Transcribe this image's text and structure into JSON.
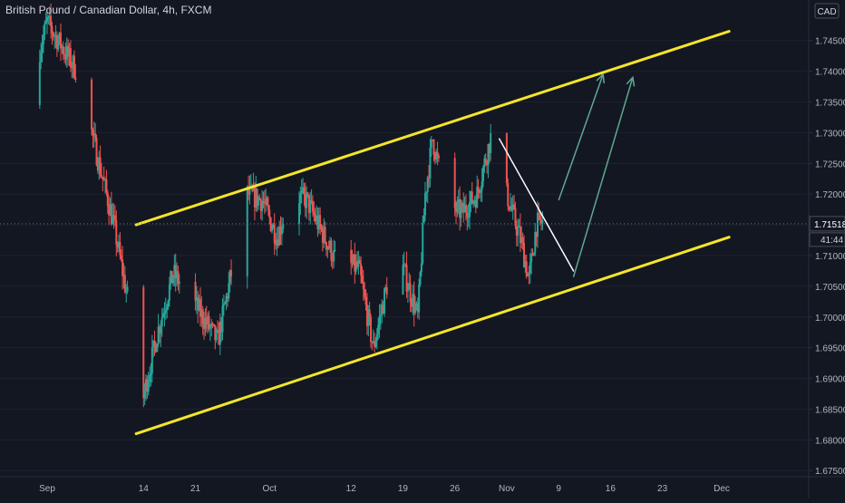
{
  "chart_data": {
    "type": "candlestick",
    "title": "British Pound / Canadian Dollar, 4h, FXCM",
    "currency": "CAD",
    "y_ticks": [
      1.675,
      1.68,
      1.685,
      1.69,
      1.695,
      1.7,
      1.705,
      1.71,
      1.715,
      1.72,
      1.725,
      1.73,
      1.735,
      1.74,
      1.745
    ],
    "y_tick_labels": [
      "1.67500",
      "1.68000",
      "1.68500",
      "1.69000",
      "1.69500",
      "1.70000",
      "1.70500",
      "1.71000",
      "1.71500",
      "1.72000",
      "1.72500",
      "1.73000",
      "1.73500",
      "1.74000",
      "1.74500"
    ],
    "ylim": [
      1.674,
      1.7516
    ],
    "x_tick_labels": [
      "Sep",
      "14",
      "21",
      "Oct",
      "12",
      "19",
      "26",
      "Nov",
      "9",
      "16",
      "23",
      "Dec"
    ],
    "current_price": "1.71518",
    "countdown": "41:44",
    "colors": {
      "background": "#131722",
      "up": "#26a69a",
      "down": "#ef5350",
      "channel": "#f5e52a",
      "trendline": "#ffffff",
      "arrow": "#5fa88f",
      "text": "#b2b5be"
    },
    "anchors": [
      {
        "date": "Aug 29",
        "price": 1.7345
      },
      {
        "date": "Sep 1",
        "price": 1.748
      },
      {
        "date": "Sep 3",
        "price": 1.744
      },
      {
        "date": "Sep 5",
        "price": 1.74
      },
      {
        "date": "Sep 8",
        "price": 1.725
      },
      {
        "date": "Sep 10",
        "price": 1.715
      },
      {
        "date": "Sep 12",
        "price": 1.702
      },
      {
        "date": "Sep 13",
        "price": 1.688
      },
      {
        "date": "Sep 14",
        "price": 1.687
      },
      {
        "date": "Sep 16",
        "price": 1.698
      },
      {
        "date": "Sep 18",
        "price": 1.707
      },
      {
        "date": "Sep 20",
        "price": 1.704
      },
      {
        "date": "Sep 22",
        "price": 1.7
      },
      {
        "date": "Sep 24",
        "price": 1.696
      },
      {
        "date": "Sep 26",
        "price": 1.708
      },
      {
        "date": "Sep 28",
        "price": 1.72
      },
      {
        "date": "Sep 30",
        "price": 1.719
      },
      {
        "date": "Oct 2",
        "price": 1.713
      },
      {
        "date": "Oct 4",
        "price": 1.72
      },
      {
        "date": "Oct 6",
        "price": 1.719
      },
      {
        "date": "Oct 8",
        "price": 1.714
      },
      {
        "date": "Oct 10",
        "price": 1.709
      },
      {
        "date": "Oct 13",
        "price": 1.708
      },
      {
        "date": "Oct 15",
        "price": 1.695
      },
      {
        "date": "Oct 17",
        "price": 1.706
      },
      {
        "date": "Oct 19",
        "price": 1.708
      },
      {
        "date": "Oct 21",
        "price": 1.7
      },
      {
        "date": "Oct 22",
        "price": 1.72
      },
      {
        "date": "Oct 23",
        "price": 1.729
      },
      {
        "date": "Oct 25",
        "price": 1.718
      },
      {
        "date": "Oct 27",
        "price": 1.717
      },
      {
        "date": "Oct 29",
        "price": 1.72
      },
      {
        "date": "Oct 31",
        "price": 1.73
      },
      {
        "date": "Nov 2",
        "price": 1.72
      },
      {
        "date": "Nov 4",
        "price": 1.712
      },
      {
        "date": "Nov 5",
        "price": 1.706
      },
      {
        "date": "Nov 6",
        "price": 1.715
      },
      {
        "date": "Nov 7",
        "price": 1.7155
      }
    ],
    "drawings": {
      "channel_upper": [
        {
          "date": "Sep 13",
          "price": 1.715
        },
        {
          "date": "Dec 2",
          "price": 1.7465
        }
      ],
      "channel_lower": [
        {
          "date": "Sep 13",
          "price": 1.681
        },
        {
          "date": "Dec 2",
          "price": 1.713
        }
      ],
      "trendline": [
        {
          "date": "Nov 1",
          "price": 1.729
        },
        {
          "date": "Nov 11",
          "price": 1.7075
        }
      ],
      "arrows": [
        [
          {
            "date": "Nov 9",
            "price": 1.719
          },
          {
            "date": "Nov 15",
            "price": 1.7395
          }
        ],
        [
          {
            "date": "Nov 11",
            "price": 1.7065
          },
          {
            "date": "Nov 19",
            "price": 1.739
          }
        ]
      ]
    }
  }
}
